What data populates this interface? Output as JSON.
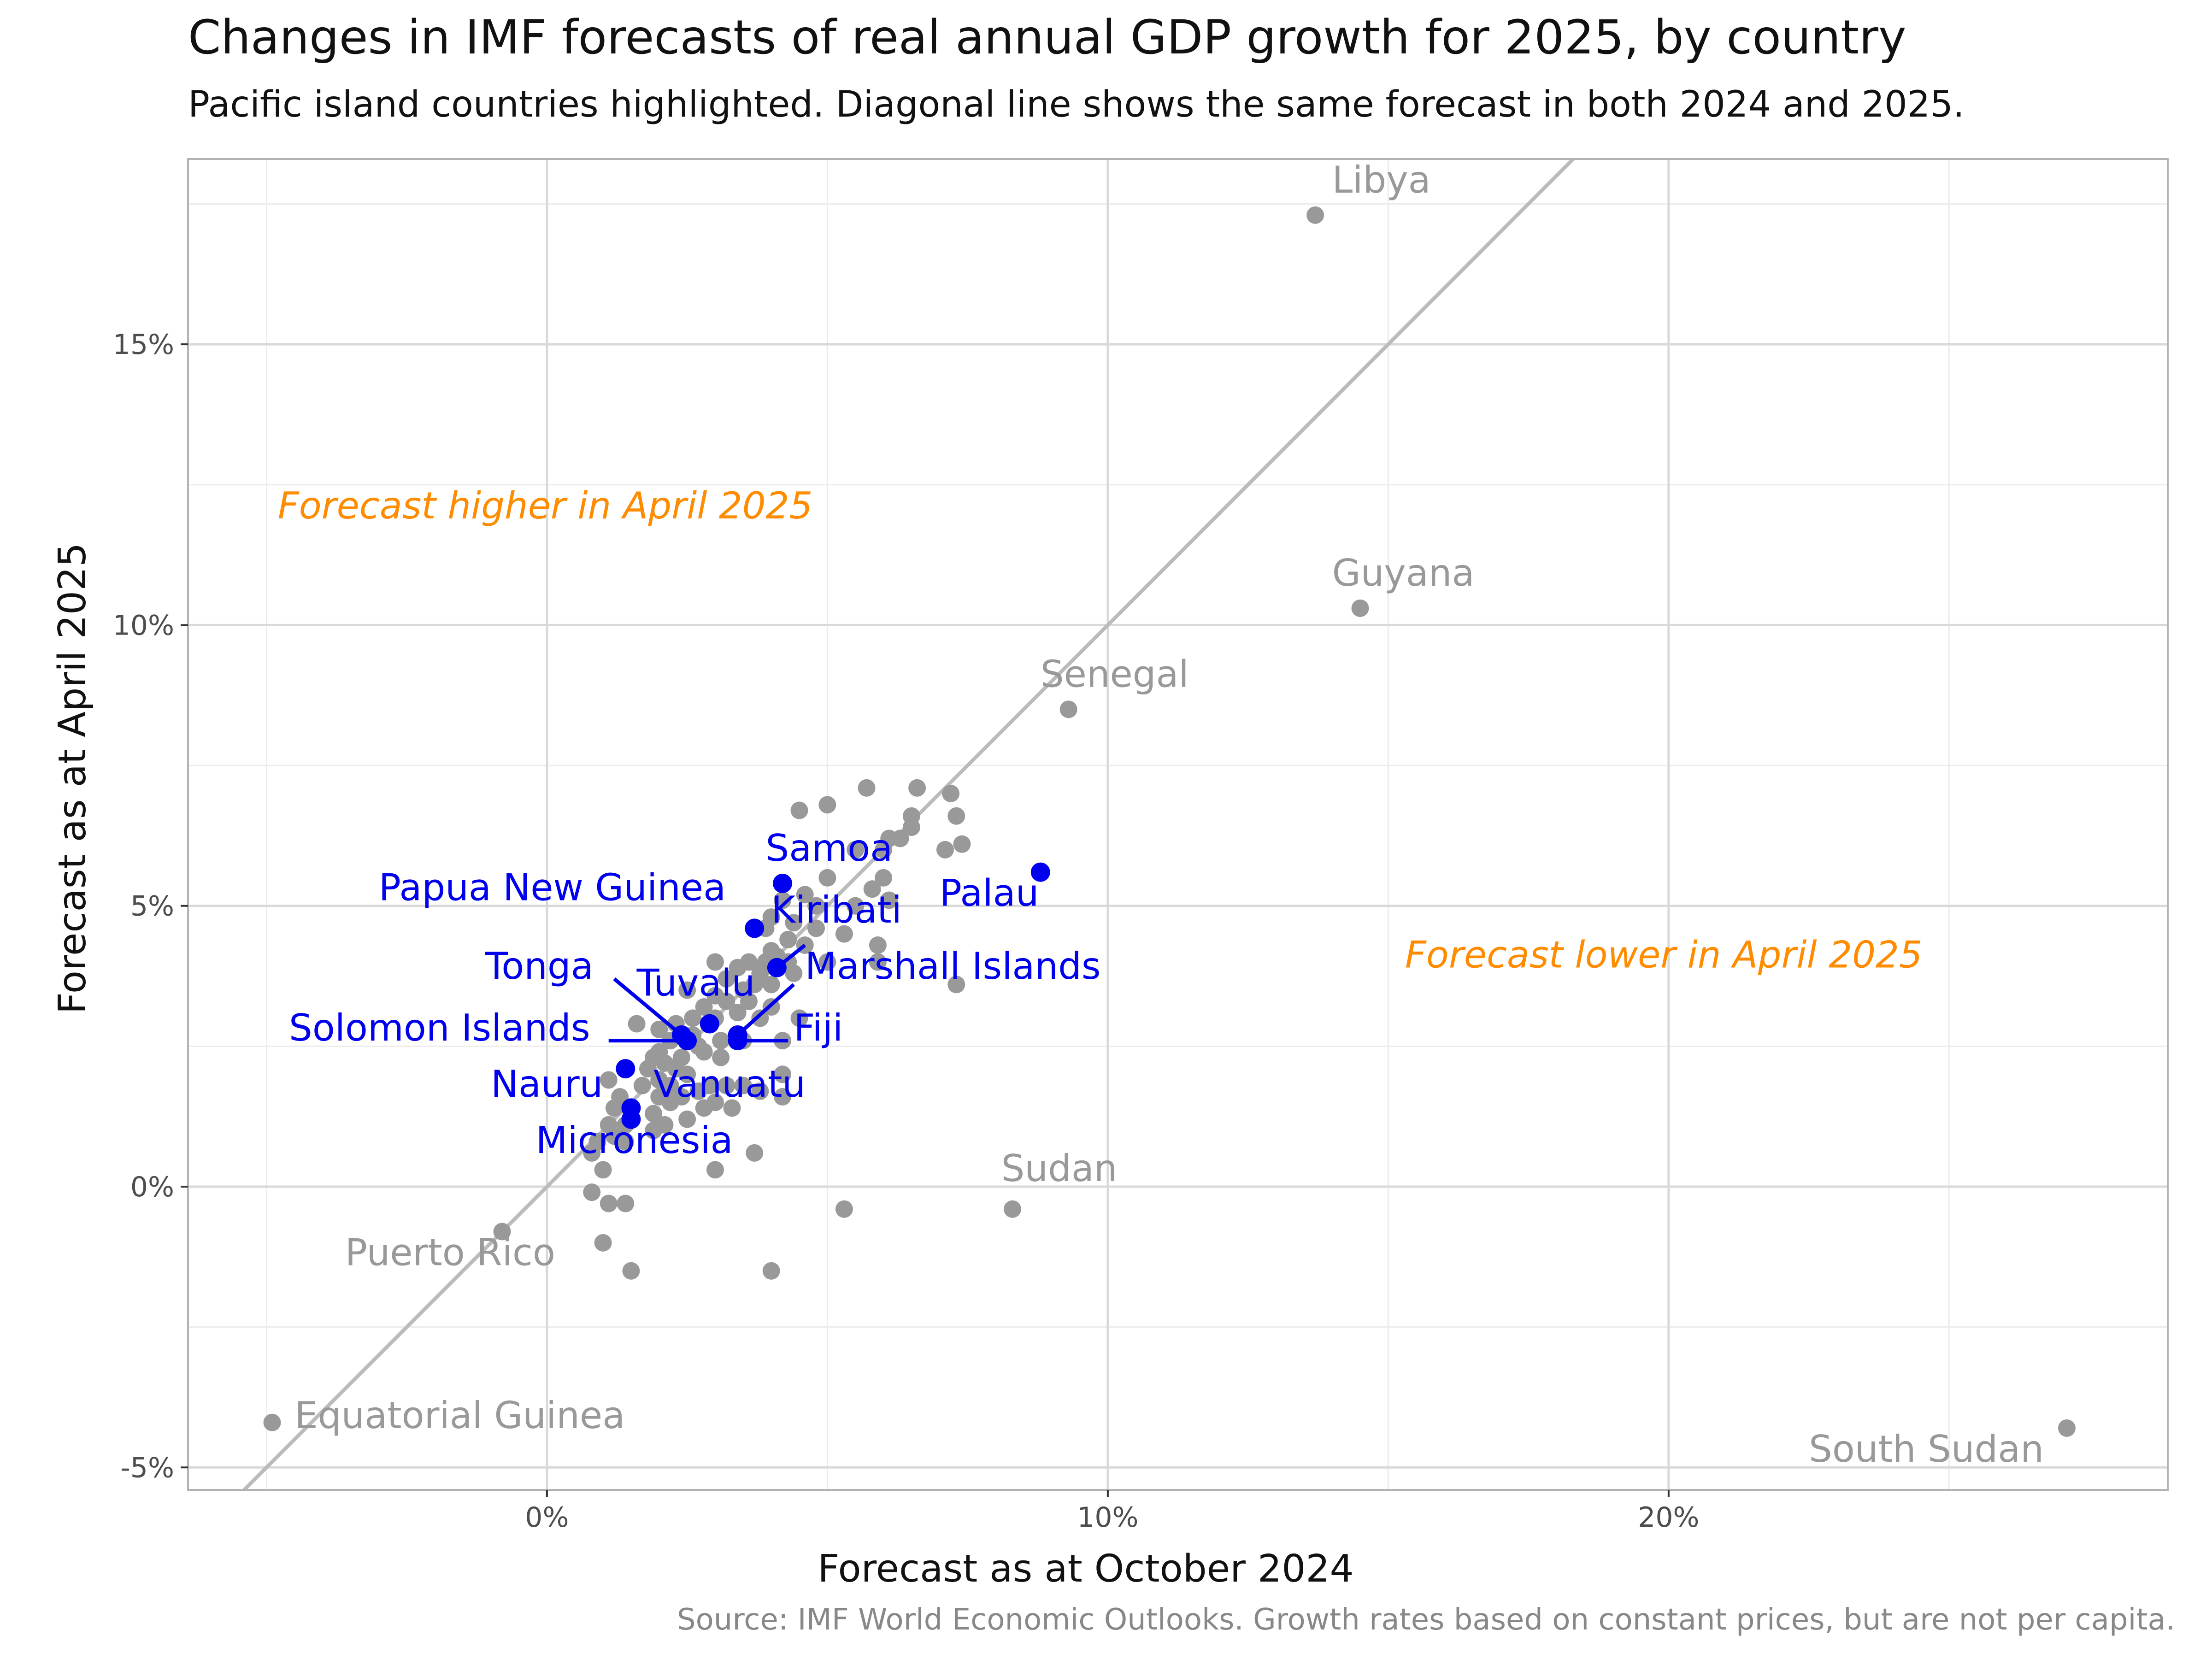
{
  "title": "Changes in IMF forecasts of real annual GDP growth for 2025, by country",
  "subtitle": "Pacific island countries highlighted. Diagonal line shows the same forecast in both 2024 and 2025.",
  "caption": "Source: IMF World Economic Outlooks. Growth rates based on constant prices, but are not per capita.",
  "chart_data": {
    "type": "scatter",
    "xlabel": "Forecast as at October 2024",
    "ylabel": "Forecast as at April 2025",
    "xlim": [
      -6.4,
      28.9
    ],
    "ylim": [
      -5.4,
      18.3
    ],
    "x_ticks": [
      0,
      10,
      20
    ],
    "x_tick_labels": [
      "0%",
      "10%",
      "20%"
    ],
    "y_ticks": [
      -5,
      0,
      5,
      10,
      15
    ],
    "y_tick_labels": [
      "-5%",
      "0%",
      "5%",
      "10%",
      "15%"
    ],
    "grid": true,
    "diagonal_reference_line": true,
    "colors": {
      "other": "#999999",
      "pacific": "#0000ee",
      "annotation": "#ff8c00",
      "diagonal": "#bbbbbb",
      "grid_major": "#d9d9d9",
      "grid_minor": "#ececec",
      "panel_border": "#b3b3b3"
    },
    "annotations": [
      {
        "text": "Forecast higher in April 2025",
        "x": -4.8,
        "y": 11.9
      },
      {
        "text": "Forecast lower in April 2025",
        "x": 15.3,
        "y": 3.9
      }
    ],
    "labeled_countries": [
      {
        "name": "Libya",
        "x": 13.7,
        "y": 17.3,
        "lx": 14.0,
        "ly": 17.7
      },
      {
        "name": "Guyana",
        "x": 14.5,
        "y": 10.3,
        "lx": 14.0,
        "ly": 10.7
      },
      {
        "name": "Senegal",
        "x": 9.3,
        "y": 8.5,
        "lx": 8.8,
        "ly": 8.9
      },
      {
        "name": "Sudan",
        "x": 8.3,
        "y": -0.4,
        "lx": 8.1,
        "ly": 0.1
      },
      {
        "name": "Puerto Rico",
        "x": -0.8,
        "y": -0.8,
        "lx": -3.6,
        "ly": -1.4
      },
      {
        "name": "Equatorial Guinea",
        "x": -4.9,
        "y": -4.2,
        "lx": -4.5,
        "ly": -4.3
      },
      {
        "name": "South Sudan",
        "x": 27.1,
        "y": -4.3,
        "lx": 22.5,
        "ly": -4.9
      }
    ],
    "pacific_countries": [
      {
        "name": "Samoa",
        "x": 4.2,
        "y": 5.4,
        "lx": 3.9,
        "ly": 5.8
      },
      {
        "name": "Palau",
        "x": 8.8,
        "y": 5.6,
        "lx": 7.0,
        "ly": 5.0
      },
      {
        "name": "Papua New Guinea",
        "x": 3.7,
        "y": 4.6,
        "lx": -3.0,
        "ly": 5.1
      },
      {
        "name": "Kiribati",
        "x": 4.1,
        "y": 3.9,
        "lx": 4.0,
        "ly": 4.7,
        "leader": [
          4.6,
          4.3,
          4.1,
          3.9
        ]
      },
      {
        "name": "Marshall Islands",
        "x": 3.4,
        "y": 2.7,
        "lx": 4.6,
        "ly": 3.7,
        "leader": [
          4.4,
          3.6,
          3.4,
          2.7
        ]
      },
      {
        "name": "Tonga",
        "x": 2.4,
        "y": 2.7,
        "lx": -1.1,
        "ly": 3.7,
        "leader": [
          1.2,
          3.7,
          2.4,
          2.7
        ]
      },
      {
        "name": "Tuvalu",
        "x": 2.9,
        "y": 2.9,
        "lx": 1.6,
        "ly": 3.4
      },
      {
        "name": "Solomon Islands",
        "x": 2.5,
        "y": 2.6,
        "lx": -4.6,
        "ly": 2.6,
        "leader": [
          1.1,
          2.6,
          2.5,
          2.6
        ]
      },
      {
        "name": "Fiji",
        "x": 3.4,
        "y": 2.6,
        "lx": 4.4,
        "ly": 2.6,
        "leader": [
          4.3,
          2.6,
          3.4,
          2.6
        ]
      },
      {
        "name": "Nauru",
        "x": 1.4,
        "y": 2.1,
        "lx": -1.0,
        "ly": 1.6
      },
      {
        "name": "Vanuatu",
        "x": 1.5,
        "y": 1.4,
        "lx": 1.9,
        "ly": 1.6
      },
      {
        "name": "Micronesia",
        "x": 1.5,
        "y": 1.2,
        "lx": -0.2,
        "ly": 0.6
      }
    ],
    "other_points": [
      [
        5.0,
        6.8
      ],
      [
        4.5,
        6.7
      ],
      [
        5.7,
        7.1
      ],
      [
        6.6,
        7.1
      ],
      [
        7.2,
        7.0
      ],
      [
        7.3,
        6.6
      ],
      [
        6.5,
        6.6
      ],
      [
        6.5,
        6.4
      ],
      [
        7.4,
        6.1
      ],
      [
        6.3,
        6.2
      ],
      [
        6.1,
        6.2
      ],
      [
        5.5,
        6.0
      ],
      [
        6.0,
        6.0
      ],
      [
        7.1,
        6.0
      ],
      [
        6.0,
        5.5
      ],
      [
        5.0,
        5.5
      ],
      [
        5.8,
        5.3
      ],
      [
        4.6,
        5.2
      ],
      [
        4.2,
        5.1
      ],
      [
        4.8,
        5.0
      ],
      [
        5.5,
        5.0
      ],
      [
        6.1,
        5.1
      ],
      [
        4.0,
        4.8
      ],
      [
        4.4,
        4.7
      ],
      [
        3.9,
        4.6
      ],
      [
        4.8,
        4.6
      ],
      [
        5.3,
        4.5
      ],
      [
        4.3,
        4.4
      ],
      [
        5.9,
        4.3
      ],
      [
        4.6,
        4.3
      ],
      [
        4.0,
        4.2
      ],
      [
        4.3,
        4.0
      ],
      [
        3.9,
        4.0
      ],
      [
        3.6,
        4.0
      ],
      [
        4.1,
        4.1
      ],
      [
        5.0,
        4.0
      ],
      [
        5.9,
        4.0
      ],
      [
        3.0,
        4.0
      ],
      [
        3.4,
        3.9
      ],
      [
        3.8,
        3.8
      ],
      [
        4.4,
        3.8
      ],
      [
        3.2,
        3.7
      ],
      [
        4.0,
        3.6
      ],
      [
        3.5,
        3.5
      ],
      [
        3.7,
        3.6
      ],
      [
        7.3,
        3.6
      ],
      [
        2.5,
        3.5
      ],
      [
        3.0,
        3.4
      ],
      [
        3.2,
        3.3
      ],
      [
        3.6,
        3.3
      ],
      [
        2.8,
        3.2
      ],
      [
        4.0,
        3.2
      ],
      [
        3.4,
        3.1
      ],
      [
        2.6,
        3.0
      ],
      [
        3.0,
        3.0
      ],
      [
        3.8,
        3.0
      ],
      [
        4.5,
        3.0
      ],
      [
        2.3,
        2.9
      ],
      [
        1.6,
        2.9
      ],
      [
        2.0,
        2.8
      ],
      [
        2.6,
        2.7
      ],
      [
        3.1,
        2.6
      ],
      [
        2.2,
        2.6
      ],
      [
        2.7,
        2.5
      ],
      [
        3.5,
        2.6
      ],
      [
        4.2,
        2.6
      ],
      [
        2.0,
        2.4
      ],
      [
        1.9,
        2.3
      ],
      [
        2.4,
        2.3
      ],
      [
        2.8,
        2.4
      ],
      [
        3.1,
        2.3
      ],
      [
        2.1,
        2.2
      ],
      [
        1.8,
        2.1
      ],
      [
        2.3,
        2.1
      ],
      [
        2.5,
        2.0
      ],
      [
        4.2,
        2.0
      ],
      [
        2.0,
        1.9
      ],
      [
        1.1,
        1.9
      ],
      [
        2.2,
        1.8
      ],
      [
        1.7,
        1.8
      ],
      [
        2.9,
        1.8
      ],
      [
        3.2,
        1.8
      ],
      [
        3.5,
        1.8
      ],
      [
        3.8,
        1.7
      ],
      [
        2.7,
        1.7
      ],
      [
        1.3,
        1.6
      ],
      [
        2.0,
        1.6
      ],
      [
        2.4,
        1.6
      ],
      [
        4.2,
        1.6
      ],
      [
        2.2,
        1.5
      ],
      [
        3.0,
        1.5
      ],
      [
        1.2,
        1.4
      ],
      [
        2.8,
        1.4
      ],
      [
        3.3,
        1.4
      ],
      [
        1.9,
        1.3
      ],
      [
        2.5,
        1.2
      ],
      [
        1.1,
        1.1
      ],
      [
        2.1,
        1.1
      ],
      [
        1.4,
        1.1
      ],
      [
        1.9,
        1.0
      ],
      [
        1.2,
        0.9
      ],
      [
        1.4,
        0.8
      ],
      [
        0.9,
        0.8
      ],
      [
        3.0,
        0.3
      ],
      [
        3.7,
        0.6
      ],
      [
        0.8,
        0.6
      ],
      [
        1.0,
        0.3
      ],
      [
        0.8,
        -0.1
      ],
      [
        1.1,
        -0.3
      ],
      [
        1.4,
        -0.3
      ],
      [
        5.3,
        -0.4
      ],
      [
        1.0,
        -1.0
      ],
      [
        1.5,
        -1.5
      ],
      [
        4.0,
        -1.5
      ]
    ]
  }
}
